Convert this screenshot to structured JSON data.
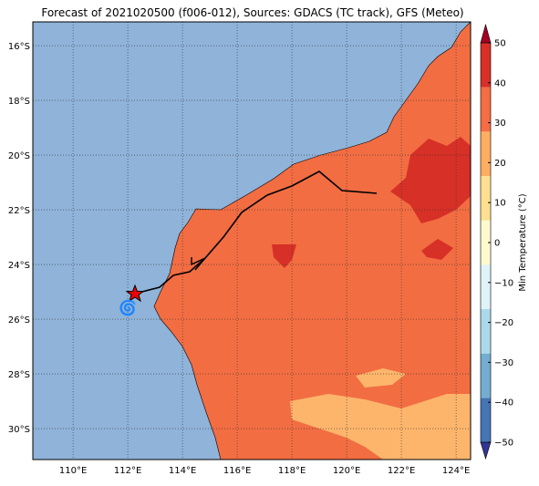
{
  "title": "Forecast of 2021020500 (f006-012), Sources: GDACS (TC track), GFS (Meteo)",
  "map": {
    "lon_lim": [
      108.53,
      124.53
    ],
    "lat_lim": [
      -31.13,
      -15.13
    ],
    "lon_ticks": [
      {
        "value": 110,
        "label": "110°E"
      },
      {
        "value": 112,
        "label": "112°E"
      },
      {
        "value": 114,
        "label": "114°E"
      },
      {
        "value": 116,
        "label": "116°E"
      },
      {
        "value": 118,
        "label": "118°E"
      },
      {
        "value": 120,
        "label": "120°E"
      },
      {
        "value": 122,
        "label": "122°E"
      },
      {
        "value": 124,
        "label": "124°E"
      }
    ],
    "lat_ticks": [
      {
        "value": -16,
        "label": "16°S"
      },
      {
        "value": -18,
        "label": "18°S"
      },
      {
        "value": -20,
        "label": "20°S"
      },
      {
        "value": -22,
        "label": "22°S"
      },
      {
        "value": -24,
        "label": "24°S"
      },
      {
        "value": -26,
        "label": "26°S"
      },
      {
        "value": -28,
        "label": "28°S"
      },
      {
        "value": -30,
        "label": "30°S"
      }
    ]
  },
  "colorbar": {
    "label": "Min Temperature (°C)",
    "lim": [
      -50,
      50
    ],
    "colors": [
      "#313695",
      "#4575b4",
      "#74add1",
      "#abd9e9",
      "#e0f3f8",
      "#fffacd",
      "#fee090",
      "#fdae61",
      "#f46d43",
      "#d73027",
      "#a50026"
    ],
    "ticks": [
      {
        "value": -50,
        "label": "−50"
      },
      {
        "value": -40,
        "label": "−40"
      },
      {
        "value": -30,
        "label": "−30"
      },
      {
        "value": -20,
        "label": "−20"
      },
      {
        "value": -10,
        "label": "−10"
      },
      0,
      10,
      20,
      30,
      40,
      50
    ]
  }
}
